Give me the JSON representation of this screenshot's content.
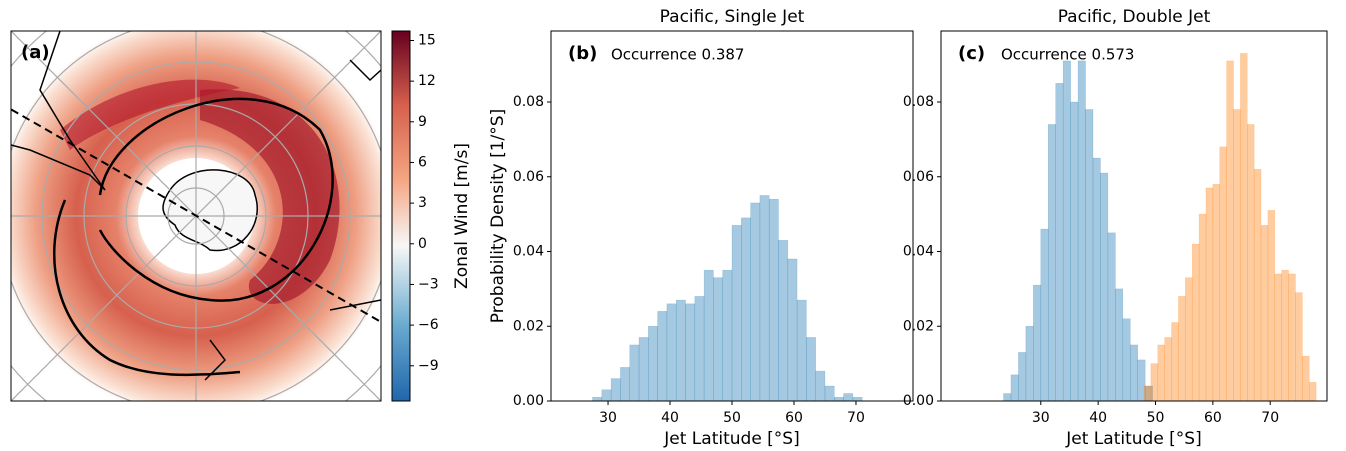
{
  "chart_data": [
    {
      "type": "map",
      "panel_label": "(a)",
      "colorbar": {
        "label": "Zonal Wind [m/s]",
        "lim": [
          -11.6,
          15.7
        ],
        "ticks": [
          {
            "value": -9,
            "label": "−9"
          },
          {
            "value": -6,
            "label": "−6"
          },
          {
            "value": -3,
            "label": "−3"
          },
          0,
          3,
          6,
          9,
          12,
          15
        ]
      }
    },
    {
      "type": "histogram",
      "title": "Pacific, Single Jet",
      "panel_label": "(b)",
      "annotation": "Occurrence 0.387",
      "xlabel": "Jet Latitude [°S]",
      "ylabel": "Probability Density [1/°S]",
      "xlim": [
        20.8,
        79.2
      ],
      "ylim": [
        0,
        0.099
      ],
      "xticks": [
        30,
        40,
        50,
        60,
        70
      ],
      "yticks": [
        {
          "value": 0,
          "label": "0.00"
        },
        0.02,
        0.04,
        0.06,
        0.08
      ],
      "series": [
        {
          "color": "#1f77b4",
          "bins": [
            27.5,
            29,
            30.5,
            32,
            33.5,
            35,
            36.5,
            38,
            39.5,
            41,
            42.5,
            44,
            45.5,
            47,
            48.5,
            50,
            51.5,
            53,
            54.5,
            56,
            57.5,
            59,
            60.5,
            62,
            63.5,
            65,
            66.5,
            68,
            69.5,
            71
          ],
          "values": [
            0.001,
            0.003,
            0.006,
            0.009,
            0.015,
            0.017,
            0.02,
            0.024,
            0.026,
            0.027,
            0.026,
            0.028,
            0.035,
            0.033,
            0.035,
            0.047,
            0.049,
            0.053,
            0.055,
            0.054,
            0.043,
            0.038,
            0.027,
            0.017,
            0.008,
            0.004,
            0.001,
            0.002,
            0.001
          ]
        }
      ]
    },
    {
      "type": "histogram",
      "title": "Pacific, Double Jet",
      "panel_label": "(c)",
      "annotation": "Occurrence 0.573",
      "xlabel": "Jet Latitude [°S]",
      "xlim": [
        12.6,
        79.9
      ],
      "ylim": [
        0,
        0.099
      ],
      "xticks": [
        30,
        40,
        50,
        60,
        70
      ],
      "yticks": [
        {
          "value": 0,
          "label": "0.00"
        },
        0.02,
        0.04,
        0.06,
        0.08
      ],
      "series": [
        {
          "color": "#1f77b4",
          "bins": [
            23.5,
            24.8,
            26.1,
            27.4,
            28.7,
            30,
            31.3,
            32.6,
            33.9,
            35.2,
            36.5,
            37.8,
            39.1,
            40.4,
            41.7,
            43,
            44.3,
            45.6,
            46.9,
            48.2,
            49.5
          ],
          "values": [
            0.002,
            0.007,
            0.013,
            0.02,
            0.031,
            0.046,
            0.074,
            0.085,
            0.091,
            0.08,
            0.091,
            0.078,
            0.065,
            0.061,
            0.045,
            0.03,
            0.022,
            0.015,
            0.011,
            0.004
          ]
        },
        {
          "color": "#ff7f0e",
          "bins": [
            48,
            49.2,
            50.4,
            51.6,
            52.8,
            54,
            55.2,
            56.4,
            57.6,
            58.8,
            60,
            61.2,
            62.4,
            63.6,
            64.8,
            66,
            67.2,
            68.4,
            69.6,
            70.8,
            72,
            73.2,
            74.4,
            75.6,
            76.8,
            78
          ],
          "values": [
            0.004,
            0.01,
            0.015,
            0.017,
            0.021,
            0.028,
            0.033,
            0.042,
            0.05,
            0.057,
            0.058,
            0.068,
            0.091,
            0.078,
            0.093,
            0.074,
            0.062,
            0.047,
            0.051,
            0.034,
            0.035,
            0.034,
            0.029,
            0.012,
            0.005
          ]
        }
      ]
    }
  ]
}
